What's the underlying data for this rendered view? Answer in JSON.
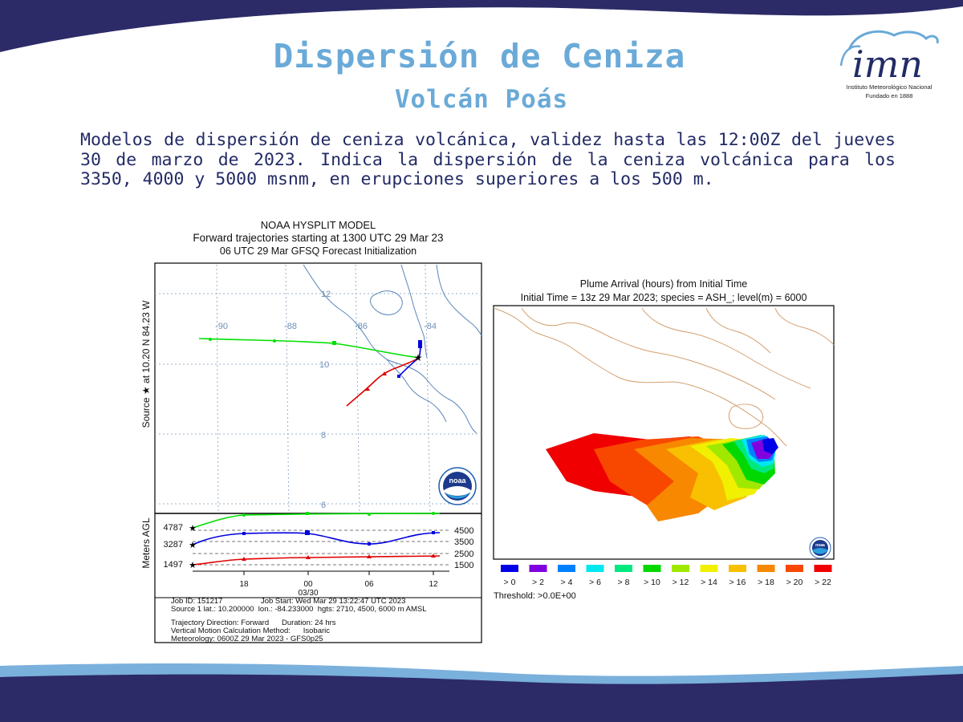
{
  "slide": {
    "title": "Dispersión de Ceniza",
    "subtitle": "Volcán Poás",
    "description": "Modelos de dispersión de ceniza volcánica, validez hasta las 12:00Z del jueves 30 de marzo de 2023. Indica la dispersión de la ceniza volcánica para los 3350, 4000 y 5000 msnm, en erupciones superiores a los 500 m."
  },
  "logo": {
    "text": "imn",
    "line1": "Instituto Meteorológico Nacional",
    "line2": "Fundado en 1888"
  },
  "colors": {
    "navy": "#2c2b67",
    "light_blue": "#6aaad8",
    "green": "#00e000",
    "blue": "#0000e0",
    "red": "#e00000"
  },
  "hysplit": {
    "header1": "NOAA HYSPLIT MODEL",
    "header2": "Forward trajectories starting at 1300 UTC 29 Mar 23",
    "header3": "06 UTC 29 Mar   GFSQ  Forecast Initialization",
    "source_label": "Source ★  at   10.20 N   84.23 W",
    "lon_labels": [
      "-90",
      "-88",
      "-86",
      "-84"
    ],
    "lat_labels": [
      "12",
      "10",
      "8",
      "6"
    ],
    "noaa_logo_text": "noaa",
    "meters_label": "Meters AGL",
    "start_heights": [
      "4787",
      "3287",
      "1497"
    ],
    "height_ticks": [
      "4500",
      "3500",
      "2500",
      "1500"
    ],
    "time_ticks": [
      "18",
      "00",
      "06",
      "12"
    ],
    "date_label": "03/30",
    "info": {
      "line1": "Job ID: 151217                  Job Start: Wed Mar 29 13:22:47 UTC 2023",
      "line2": "Source 1 lat.: 10.200000  lon.: -84.233000  hgts: 2710, 4500, 6000 m AMSL",
      "line3": "Trajectory Direction: Forward      Duration: 24 hrs",
      "line4": "Vertical Motion Calculation Method:      Isobaric",
      "line5": "Meteorology: 0600Z 29 Mar 2023 - GFS0p25"
    }
  },
  "plume": {
    "header1": "Plume Arrival (hours) from Initial Time",
    "header2": "Initial Time = 13z 29 Mar 2023;  species = ASH_;  level(m) =  6000",
    "legend": [
      {
        "label": "> 0",
        "color": "#0000e8"
      },
      {
        "label": "> 2",
        "color": "#8000e0"
      },
      {
        "label": "> 4",
        "color": "#0080ff"
      },
      {
        "label": "> 6",
        "color": "#00e8f0"
      },
      {
        "label": "> 8",
        "color": "#00e880"
      },
      {
        "label": "> 10",
        "color": "#00d800"
      },
      {
        "label": "> 12",
        "color": "#a0e800"
      },
      {
        "label": "> 14",
        "color": "#f0f000"
      },
      {
        "label": "> 16",
        "color": "#f8c000"
      },
      {
        "label": "> 18",
        "color": "#f88800"
      },
      {
        "label": "> 20",
        "color": "#f84800"
      },
      {
        "label": "> 22",
        "color": "#f00000"
      }
    ],
    "threshold": "Threshold: >0.0E+00",
    "noaa_logo_text": "noaa"
  }
}
